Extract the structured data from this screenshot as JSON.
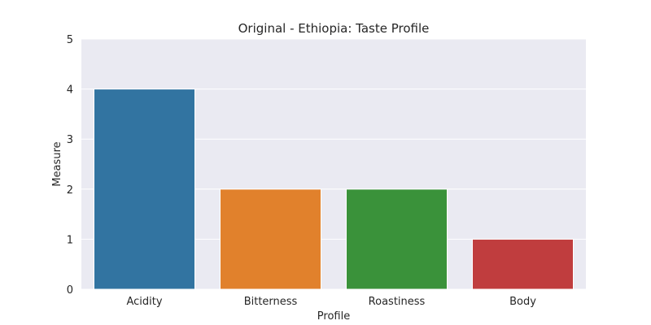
{
  "chart_data": {
    "type": "bar",
    "title": "Original - Ethiopia: Taste Profile",
    "xlabel": "Profile",
    "ylabel": "Measure",
    "categories": [
      "Acidity",
      "Bitterness",
      "Roastiness",
      "Body"
    ],
    "values": [
      4,
      2,
      2,
      1
    ],
    "colors": [
      "#3274a1",
      "#e1812c",
      "#3a923a",
      "#c03d3e"
    ],
    "ylim": [
      0,
      5
    ],
    "yticks": [
      "0",
      "1",
      "2",
      "3",
      "4",
      "5"
    ],
    "grid": true,
    "plot_background": "#eaeaf2",
    "grid_color": "#ffffff"
  }
}
